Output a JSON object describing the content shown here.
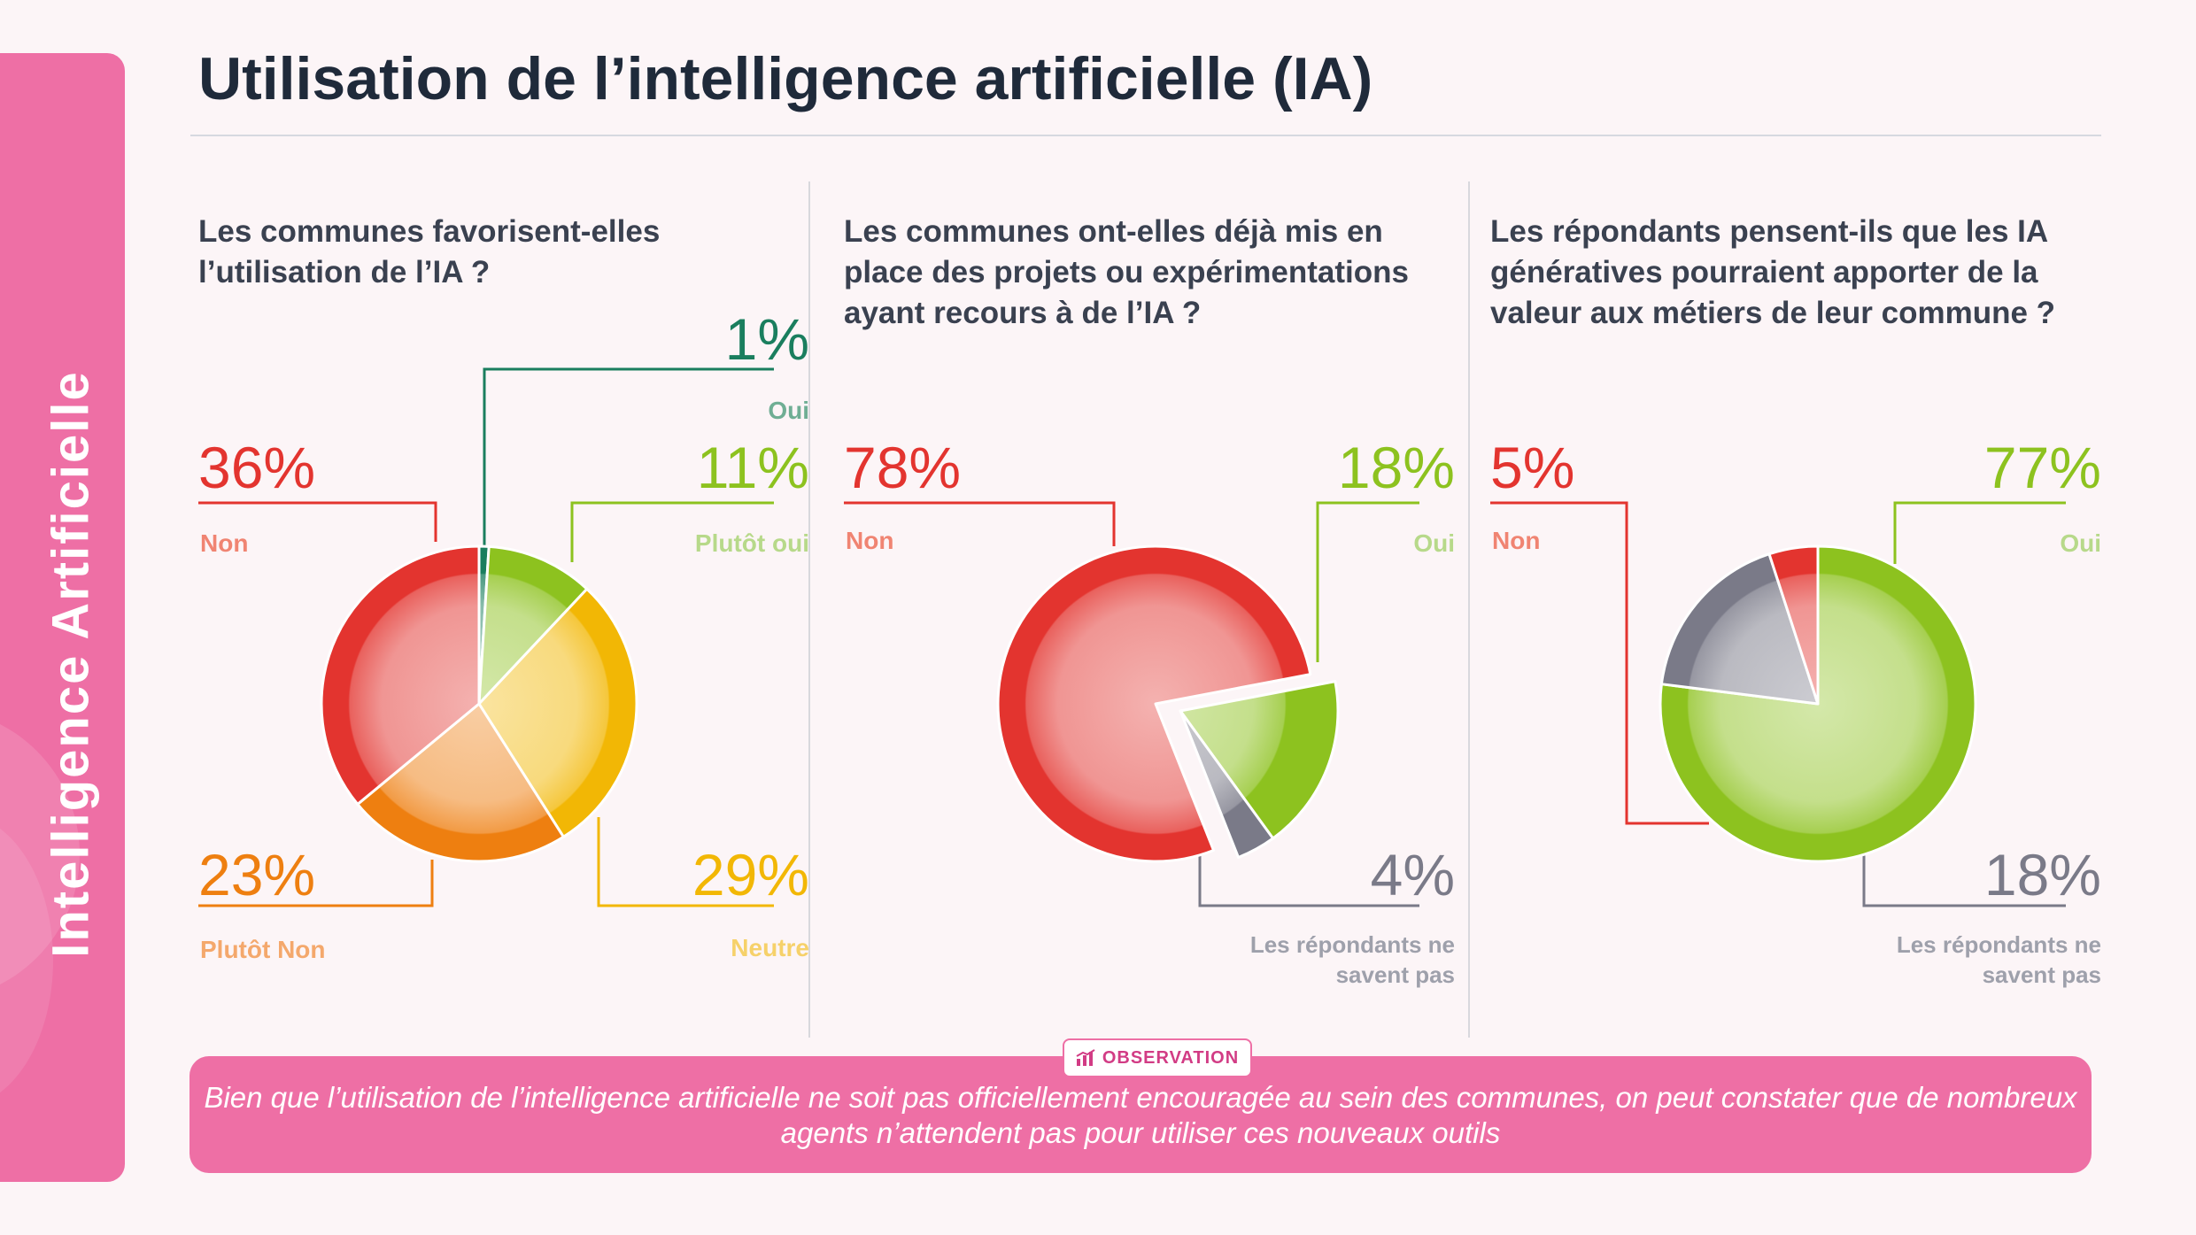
{
  "side_label": "Intelligence Artificielle",
  "title": "Utilisation de l’intelligence artificielle (IA)",
  "colors": {
    "brand": "#ee6fa5",
    "non": "#e3342f",
    "plutot_non": "#ee7f10",
    "neutre": "#f2b705",
    "plutot_oui": "#8dc21f",
    "oui": "#1a7e5e",
    "ne_savent_pas": "#7a7a88"
  },
  "chart_data": [
    {
      "type": "pie",
      "title": "Les communes favorisent-elles l’utilisation de l’IA ?",
      "slices": [
        {
          "label": "Oui",
          "value": 1,
          "display": "1%",
          "color": "#1a7e5e"
        },
        {
          "label": "Plutôt oui",
          "value": 11,
          "display": "11%",
          "color": "#8dc21f"
        },
        {
          "label": "Neutre",
          "value": 29,
          "display": "29%",
          "color": "#f2b705"
        },
        {
          "label": "Plutôt Non",
          "value": 23,
          "display": "23%",
          "color": "#ee7f10"
        },
        {
          "label": "Non",
          "value": 36,
          "display": "36%",
          "color": "#e3342f"
        }
      ]
    },
    {
      "type": "pie",
      "title": "Les communes ont-elles déjà mis en place des projets ou expérimentations ayant recours à de l’IA ?",
      "slices": [
        {
          "label": "Oui",
          "value": 18,
          "display": "18%",
          "color": "#8dc21f"
        },
        {
          "label": "Les répondants ne savent pas",
          "value": 4,
          "display": "4%",
          "color": "#7a7a88"
        },
        {
          "label": "Non",
          "value": 78,
          "display": "78%",
          "color": "#e3342f"
        }
      ]
    },
    {
      "type": "pie",
      "title": "Les répondants pensent-ils que les IA génératives pourraient apporter de la valeur aux métiers de leur commune ?",
      "slices": [
        {
          "label": "Oui",
          "value": 77,
          "display": "77%",
          "color": "#8dc21f"
        },
        {
          "label": "Les répondants ne savent pas",
          "value": 18,
          "display": "18%",
          "color": "#7a7a88"
        },
        {
          "label": "Non",
          "value": 5,
          "display": "5%",
          "color": "#e3342f"
        }
      ]
    }
  ],
  "observation": {
    "badge": "OBSERVATION",
    "text": "Bien que l’utilisation de l’intelligence artificielle ne soit pas officiellement encouragée au sein des communes, on peut constater que de nombreux agents n’attendent pas pour utiliser ces nouveaux outils"
  }
}
